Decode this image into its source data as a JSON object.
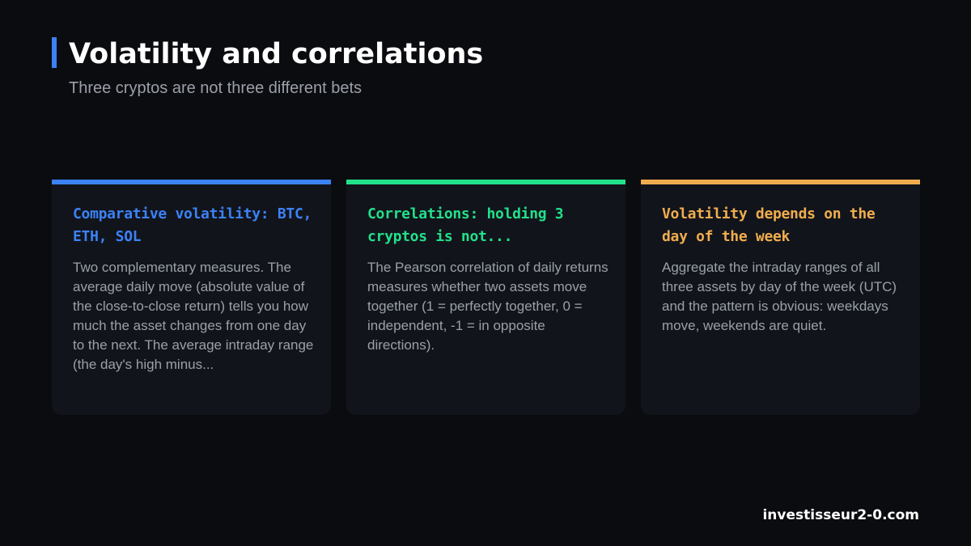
{
  "header": {
    "title": "Volatility and correlations",
    "subtitle": "Three cryptos are not three different bets",
    "accent_color": "#3b82f6"
  },
  "cards": [
    {
      "accent_color": "#3b82f6",
      "title": "Comparative volatility: BTC, ETH, SOL",
      "body": "Two complementary measures. The average daily move (absolute value of the close-to-close return) tells you how much the asset changes from one day to the next. The average intraday range (the day's high minus..."
    },
    {
      "accent_color": "#22e08a",
      "title": "Correlations: holding 3 cryptos is not...",
      "body": "The Pearson correlation of daily returns measures whether two assets move together (1 = perfectly together, 0 = independent, -1 = in opposite directions)."
    },
    {
      "accent_color": "#f0ad4e",
      "title": "Volatility depends on the day of the week",
      "body": "Aggregate the intraday ranges of all three assets by day of the week (UTC) and the pattern is obvious: weekdays move, weekends are quiet."
    }
  ],
  "footer": {
    "site": "investisseur2-0.com"
  }
}
